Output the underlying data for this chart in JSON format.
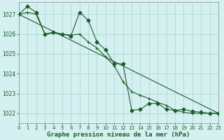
{
  "title": "Graphe pression niveau de la mer (hPa)",
  "background_color": "#d5f0f0",
  "grid_color": "#b0d8d0",
  "line_color": "#1a5c2a",
  "xlim": [
    0,
    23
  ],
  "ylim": [
    1021.5,
    1027.6
  ],
  "yticks": [
    1022,
    1023,
    1024,
    1025,
    1026,
    1027
  ],
  "xticks": [
    0,
    1,
    2,
    3,
    4,
    5,
    6,
    7,
    8,
    9,
    10,
    11,
    12,
    13,
    14,
    15,
    16,
    17,
    18,
    19,
    20,
    21,
    22,
    23
  ],
  "series1_x": [
    0,
    1,
    2,
    3,
    4,
    5,
    6,
    7,
    8,
    9,
    10,
    11,
    12,
    13,
    14,
    15,
    16,
    17,
    18,
    19,
    20,
    21,
    22,
    23
  ],
  "series1_y": [
    1027.0,
    1027.4,
    1027.1,
    1026.0,
    1026.1,
    1026.0,
    1025.9,
    1027.1,
    1026.7,
    1025.6,
    1025.2,
    1024.5,
    1024.5,
    1022.15,
    1022.2,
    1022.5,
    1022.5,
    1022.2,
    1022.15,
    1022.2,
    1022.1,
    1022.05,
    1022.0,
    1022.0
  ],
  "series2_x": [
    0,
    1,
    2,
    3,
    4,
    5,
    6,
    7,
    8,
    9,
    10,
    11,
    12,
    13,
    14,
    15,
    16,
    17,
    18,
    19,
    20,
    21,
    22,
    23
  ],
  "series2_y": [
    1027.0,
    1027.1,
    1027.0,
    1026.0,
    1026.05,
    1026.0,
    1025.95,
    1026.0,
    1025.6,
    1025.3,
    1024.85,
    1024.4,
    1023.6,
    1023.1,
    1022.9,
    1022.75,
    1022.55,
    1022.4,
    1022.15,
    1022.05,
    1022.0,
    1022.0,
    1022.0,
    1022.0
  ],
  "series3_x": [
    0,
    23
  ],
  "series3_y": [
    1027.0,
    1022.0
  ]
}
